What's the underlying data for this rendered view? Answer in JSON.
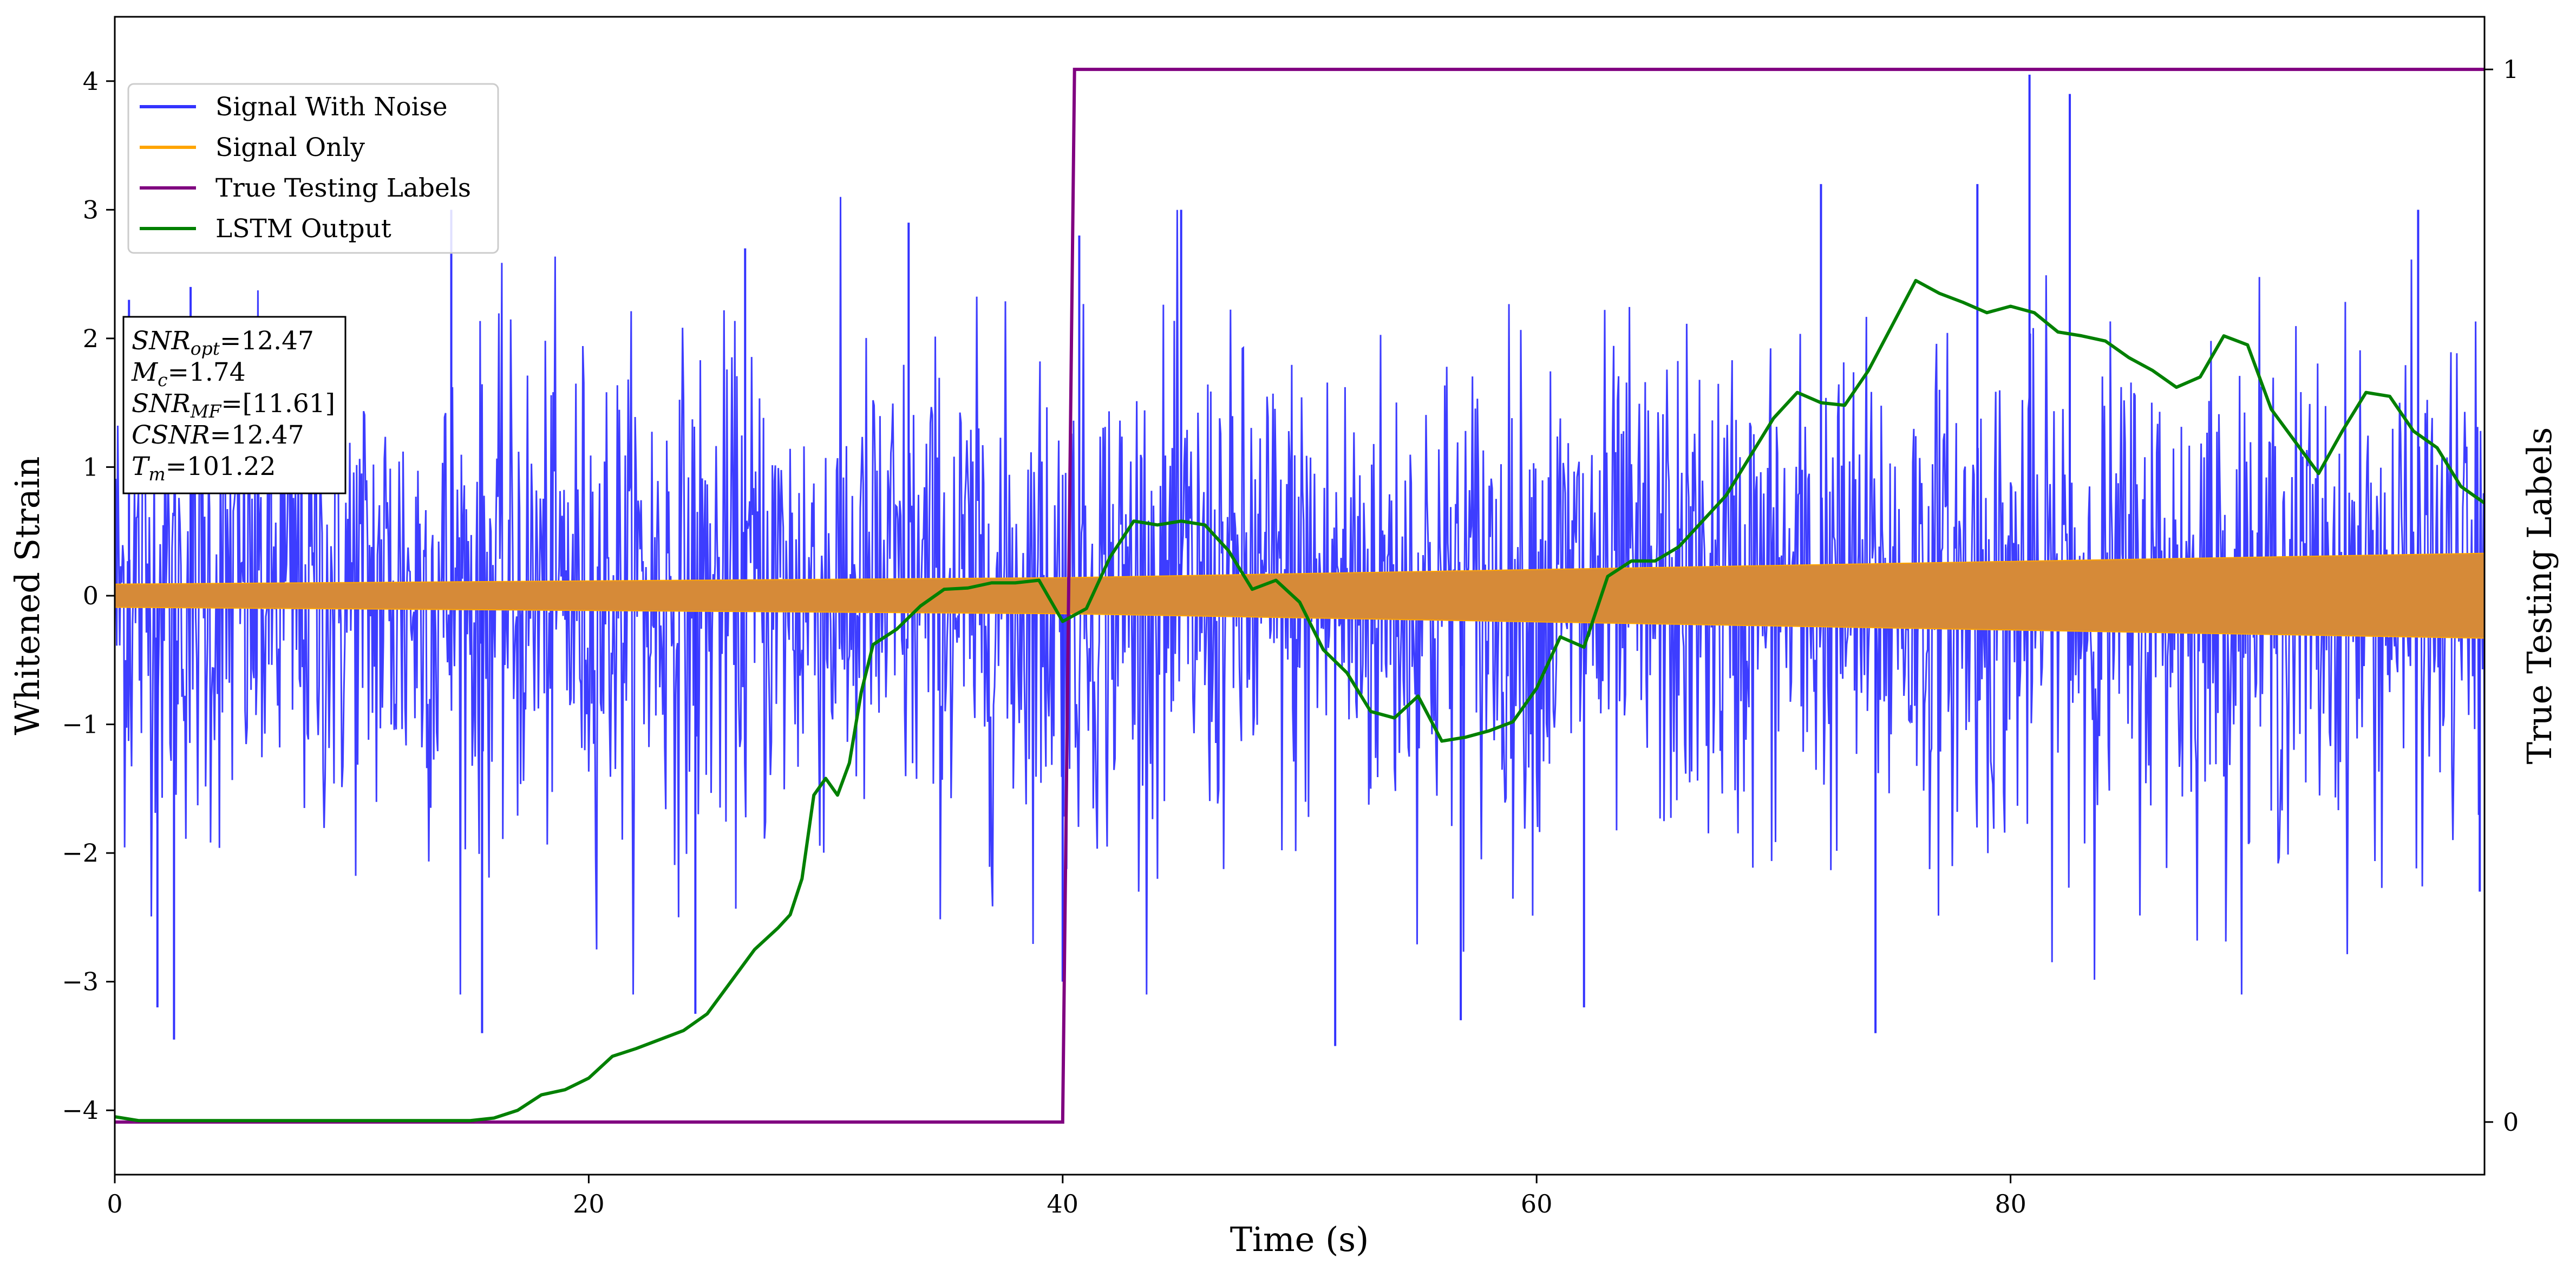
{
  "chart_data": {
    "type": "line",
    "xlabel": "Time (s)",
    "ylabel": "Whitened Strain",
    "y2label": "True Testing Labels",
    "xlim": [
      0,
      100
    ],
    "ylim": [
      -4.5,
      4.5
    ],
    "y2lim": [
      -0.05,
      1.05
    ],
    "xticks": [
      0,
      20,
      40,
      60,
      80
    ],
    "yticks": [
      -4,
      -3,
      -2,
      -1,
      0,
      1,
      2,
      3,
      4
    ],
    "y2ticks": [
      0,
      1
    ],
    "tick_labels": {
      "x": [
        "0",
        "20",
        "40",
        "60",
        "80"
      ],
      "y": [
        "−4",
        "−3",
        "−2",
        "−1",
        "0",
        "1",
        "2",
        "3",
        "4"
      ],
      "y2": [
        "0",
        "1"
      ]
    },
    "grid": false,
    "legend_position": "upper-left",
    "series": [
      {
        "name": "Signal With Noise",
        "color": "#3333ff",
        "axis": "left",
        "noise_std": 0.95,
        "peaks": [
          {
            "x": 0.6,
            "y": 2.3
          },
          {
            "x": 1.8,
            "y": -3.2
          },
          {
            "x": 2.5,
            "y": -3.45
          },
          {
            "x": 3.2,
            "y": 2.4
          },
          {
            "x": 14.2,
            "y": 3.0
          },
          {
            "x": 15.5,
            "y": -3.4
          },
          {
            "x": 24.5,
            "y": -3.25
          },
          {
            "x": 26.6,
            "y": 2.7
          },
          {
            "x": 33.5,
            "y": 2.9
          },
          {
            "x": 40.0,
            "y": -3.0
          },
          {
            "x": 40.7,
            "y": 2.8
          },
          {
            "x": 45.0,
            "y": 3.0
          },
          {
            "x": 51.5,
            "y": -3.5
          },
          {
            "x": 56.8,
            "y": -3.3
          },
          {
            "x": 62.0,
            "y": -3.2
          },
          {
            "x": 72.0,
            "y": 3.2
          },
          {
            "x": 74.3,
            "y": -3.4
          },
          {
            "x": 78.6,
            "y": 3.2
          },
          {
            "x": 80.8,
            "y": 4.05
          },
          {
            "x": 82.5,
            "y": 3.9
          },
          {
            "x": 97.2,
            "y": 3.0
          },
          {
            "x": 99.8,
            "y": -2.3
          }
        ]
      },
      {
        "name": "Signal Only",
        "color": "#ffa500",
        "axis": "left",
        "envelope": {
          "x": [
            0,
            40,
            100
          ],
          "y": [
            0.09,
            0.14,
            0.33
          ]
        }
      },
      {
        "name": "True Testing Labels",
        "color": "#800080",
        "axis": "right",
        "x": [
          0,
          40.0,
          40.5,
          100
        ],
        "y": [
          0,
          0,
          1,
          1
        ]
      },
      {
        "name": "LSTM Output",
        "color": "#008000",
        "axis": "left",
        "x": [
          0,
          1,
          5,
          10,
          15,
          16,
          17,
          18,
          19,
          20,
          21,
          22,
          23,
          24,
          25,
          26,
          27,
          28,
          28.5,
          29,
          29.5,
          30,
          30.5,
          31,
          31.5,
          32,
          33,
          34,
          35,
          36,
          37,
          38,
          39,
          40,
          41,
          42,
          43,
          44,
          45,
          46,
          47,
          48,
          49,
          50,
          51,
          52,
          53,
          54,
          55,
          56,
          57,
          58,
          59,
          60,
          61,
          62,
          63,
          64,
          65,
          66,
          67,
          68,
          69,
          70,
          71,
          72,
          73,
          74,
          75,
          76,
          77,
          78,
          79,
          80,
          81,
          82,
          83,
          84,
          85,
          86,
          87,
          88,
          89,
          90,
          91,
          92,
          93,
          94,
          95,
          96,
          97,
          98,
          99,
          100
        ],
        "y": [
          -4.05,
          -4.08,
          -4.08,
          -4.08,
          -4.08,
          -4.06,
          -4.0,
          -3.88,
          -3.84,
          -3.75,
          -3.58,
          -3.52,
          -3.45,
          -3.38,
          -3.25,
          -3.0,
          -2.75,
          -2.58,
          -2.48,
          -2.2,
          -1.55,
          -1.42,
          -1.55,
          -1.3,
          -0.75,
          -0.38,
          -0.26,
          -0.08,
          0.05,
          0.06,
          0.1,
          0.1,
          0.12,
          -0.2,
          -0.1,
          0.3,
          0.58,
          0.55,
          0.58,
          0.55,
          0.35,
          0.05,
          0.12,
          -0.05,
          -0.42,
          -0.6,
          -0.9,
          -0.95,
          -0.78,
          -1.13,
          -1.1,
          -1.05,
          -0.98,
          -0.72,
          -0.32,
          -0.4,
          0.15,
          0.27,
          0.27,
          0.38,
          0.58,
          0.78,
          1.08,
          1.38,
          1.58,
          1.5,
          1.48,
          1.75,
          2.1,
          2.45,
          2.35,
          2.28,
          2.2,
          2.25,
          2.2,
          2.05,
          2.02,
          1.98,
          1.85,
          1.75,
          1.62,
          1.7,
          2.02,
          1.95,
          1.45,
          1.2,
          0.95,
          1.28,
          1.58,
          1.55,
          1.28,
          1.15,
          0.85,
          0.72
        ]
      }
    ]
  },
  "legend": {
    "items": [
      {
        "label": "Signal With Noise",
        "color": "#3333ff"
      },
      {
        "label": "Signal Only",
        "color": "#ffa500"
      },
      {
        "label": "True Testing Labels",
        "color": "#800080"
      },
      {
        "label": "LSTM Output",
        "color": "#008000"
      }
    ]
  },
  "annotation": {
    "lines": [
      {
        "var": "SNR",
        "sub": "opt",
        "value": "=12.47"
      },
      {
        "var": "M",
        "sub": "c",
        "value": "=1.74"
      },
      {
        "var": "SNR",
        "sub": "MF",
        "value": "=[11.61]"
      },
      {
        "var": "CSNR",
        "sub": "",
        "value": "=12.47"
      },
      {
        "var": "T",
        "sub": "m",
        "value": "=101.22"
      }
    ]
  }
}
